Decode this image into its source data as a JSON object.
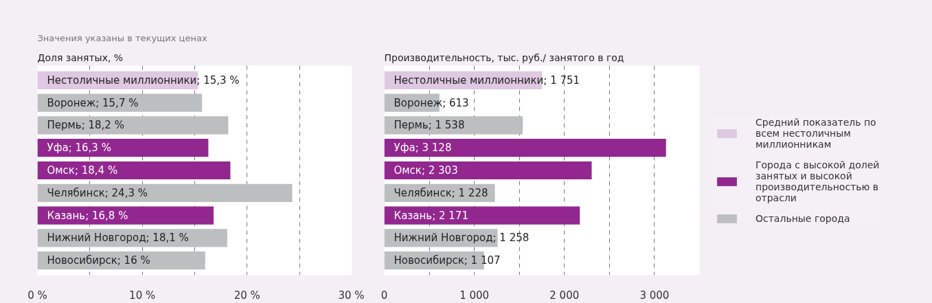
{
  "chart_data": [
    {
      "type": "bar",
      "orientation": "horizontal",
      "title": "Доля занятых, %",
      "annotations": [
        "Значения указаны в текущих ценах"
      ],
      "categories": [
        "Нестоличные миллионники; 15,3 %",
        "Воронеж; 15,7 %",
        "Пермь; 18,2 %",
        "Уфа; 16,3 %",
        "Омск; 18,4 %",
        "Челябинск; 24,3 %",
        "Казань; 16,8 %",
        "Нижний Новгород; 18,1 %",
        "Новосибирск; 16 %"
      ],
      "series": [
        {
          "color": "#dfc8e2",
          "values": [
            15.3,
            null,
            null,
            null,
            null,
            null,
            null,
            null,
            null
          ]
        },
        {
          "color": "#92278f",
          "values": [
            null,
            null,
            null,
            16.3,
            18.4,
            null,
            16.8,
            null,
            null
          ]
        },
        {
          "color": "#bdbec0",
          "values": [
            null,
            15.7,
            18.2,
            null,
            null,
            24.3,
            null,
            18.1,
            16
          ]
        }
      ],
      "xlim": [
        0,
        30
      ],
      "xticks": [
        {
          "value": 0,
          "label": "0 %"
        },
        {
          "value": 5,
          "label": null
        },
        {
          "value": 10,
          "label": "10 %"
        },
        {
          "value": 15,
          "label": null
        },
        {
          "value": 20,
          "label": "20 %"
        },
        {
          "value": 25,
          "label": null
        },
        {
          "value": 30,
          "label": "30 %"
        }
      ],
      "grid": "x"
    },
    {
      "type": "bar",
      "orientation": "horizontal",
      "title": "Производительность, тыс. руб./ занятого в год",
      "categories": [
        "Нестоличные миллионники; 1 751",
        "Воронеж; 613",
        "Пермь; 1 538",
        "Уфа; 3 128",
        "Омск; 2 303",
        "Челябинск; 1 228",
        "Казань; 2 171",
        "Нижний Новгород; 1 258",
        "Новосибирск; 1 107"
      ],
      "series": [
        {
          "name": "Средний показатель по всем нестоличным миллионникам",
          "color": "#dfc8e2",
          "values": [
            1751,
            null,
            null,
            null,
            null,
            null,
            null,
            null,
            null
          ]
        },
        {
          "name": "Города с высокой долей занятых и высокой производительностью в отрасли",
          "color": "#92278f",
          "values": [
            null,
            null,
            null,
            3128,
            2303,
            null,
            2171,
            null,
            null
          ]
        },
        {
          "name": "Остальные города",
          "color": "#bdbec0",
          "values": [
            null,
            613,
            1538,
            null,
            null,
            1228,
            null,
            1258,
            1107
          ]
        }
      ],
      "xlim": [
        0,
        3500
      ],
      "xticks": [
        0,
        {
          "value": 500,
          "label": null
        },
        {
          "value": 1000,
          "label": "1 000"
        },
        {
          "value": 1500,
          "label": null
        },
        {
          "value": 2000,
          "label": "2 000"
        },
        {
          "value": 2500,
          "label": null
        },
        {
          "value": 3000,
          "label": "3 000"
        }
      ],
      "grid": "x",
      "legend": "right"
    }
  ]
}
